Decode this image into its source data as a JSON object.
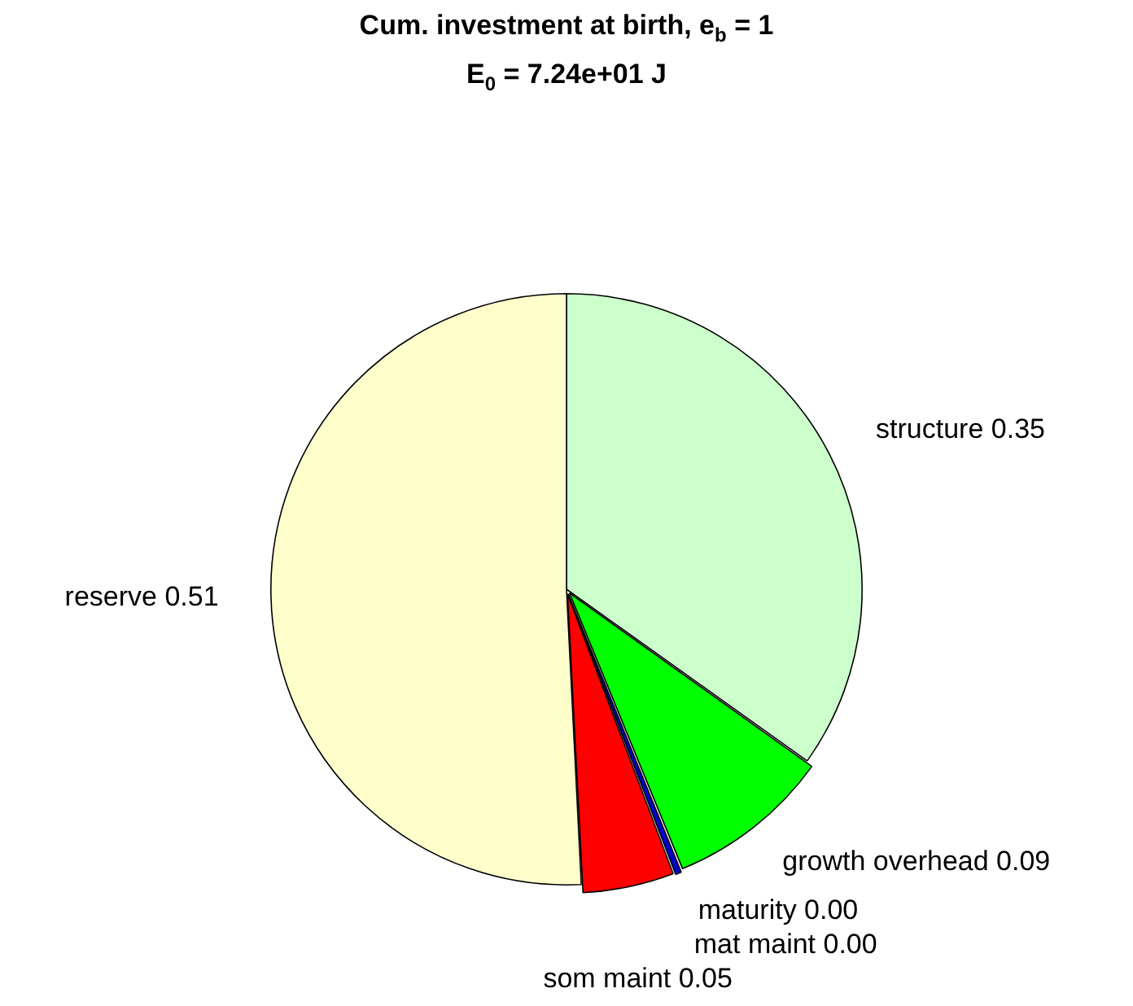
{
  "chart_data": {
    "type": "pie",
    "title": "Cum. investment at birth, e$_{b}$ = 1",
    "subtitle": "E$_{0}$ = 7.24e+01 J",
    "categories": [
      "structure",
      "growth overhead",
      "maturity",
      "mat maint",
      "som maint",
      "reserve"
    ],
    "values": [
      0.35,
      0.09,
      0,
      0.004,
      0.05,
      0.51
    ],
    "colors": [
      "#ccffcc",
      "#00ff00",
      "#0000ff",
      "#0000cc",
      "#ff0000",
      "#ffffcc"
    ],
    "value_labels": [
      "0.35",
      "0.09",
      "0.00",
      "0.00",
      "0.05",
      "0.51"
    ],
    "legend": false
  }
}
